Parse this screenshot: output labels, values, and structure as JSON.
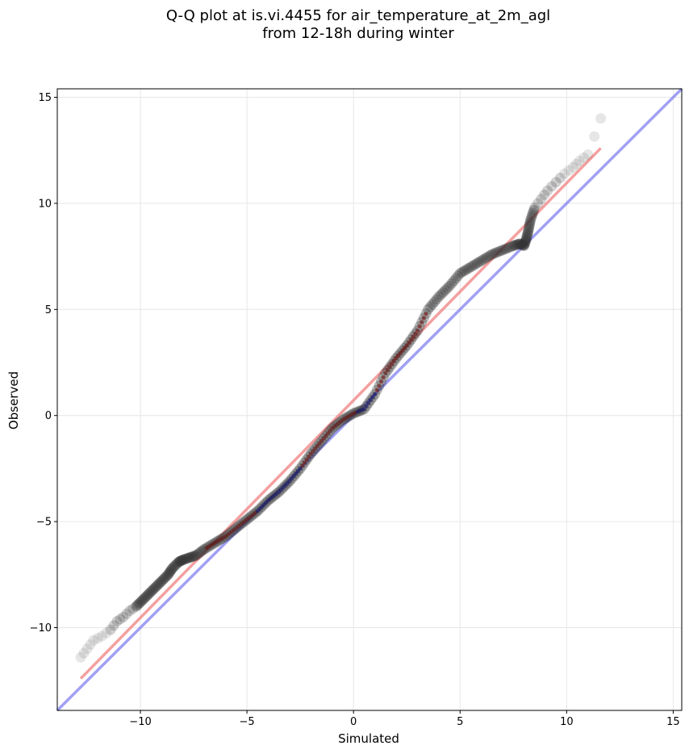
{
  "chart_data": {
    "type": "scatter",
    "title": "Q-Q plot at is.vi.4455 for air_temperature_at_2m_agl",
    "subtitle": "from 12-18h during winter",
    "xlabel": "Simulated",
    "ylabel": "Observed",
    "xlim": [
      -13.9,
      15.4
    ],
    "ylim": [
      -13.9,
      15.4
    ],
    "xticks": [
      -10,
      -5,
      0,
      5,
      10,
      15
    ],
    "yticks": [
      -10,
      -5,
      0,
      5,
      10,
      15
    ],
    "xtick_labels": [
      "−10",
      "−5",
      "0",
      "5",
      "10",
      "15"
    ],
    "ytick_labels": [
      "−10",
      "−5",
      "0",
      "5",
      "10",
      "15"
    ],
    "grid": true,
    "colors": {
      "points": "#333333",
      "fit_line": "#f08080",
      "identity_line": "#8080f0",
      "central_red": "#8b0000",
      "central_blue": "#00008b"
    },
    "identity_line": {
      "x": [
        -13.9,
        15.4
      ],
      "y": [
        -13.9,
        15.4
      ]
    },
    "fit_line": {
      "x": [
        -12.8,
        11.6
      ],
      "y": [
        -12.4,
        12.6
      ]
    },
    "quantiles": {
      "simulated": [
        -12.8,
        -12.5,
        -12.2,
        -11.8,
        -11.4,
        -11.1,
        -10.8,
        -10.5,
        -10.2,
        -9.9,
        -9.6,
        -9.3,
        -9.0,
        -8.7,
        -8.5,
        -8.2,
        -8.0,
        -7.7,
        -7.4,
        -7.0,
        -6.5,
        -6.0,
        -5.5,
        -5.0,
        -4.5,
        -4.0,
        -3.5,
        -3.0,
        -2.5,
        -2.0,
        -1.5,
        -1.0,
        -0.5,
        0.0,
        0.5,
        1.0,
        1.5,
        2.0,
        2.5,
        3.0,
        3.5,
        4.0,
        4.5,
        5.0,
        5.5,
        6.0,
        6.5,
        7.0,
        7.5,
        7.8,
        8.0,
        8.1,
        8.2,
        8.3,
        8.5,
        8.8,
        9.1,
        9.5,
        9.9,
        10.3,
        10.6,
        11.0,
        11.6
      ],
      "observed": [
        -11.4,
        -11.0,
        -10.6,
        -10.4,
        -10.1,
        -9.7,
        -9.5,
        -9.2,
        -9.0,
        -8.7,
        -8.4,
        -8.1,
        -7.8,
        -7.5,
        -7.2,
        -6.9,
        -6.8,
        -6.7,
        -6.6,
        -6.3,
        -6.0,
        -5.7,
        -5.3,
        -4.9,
        -4.5,
        -4.0,
        -3.6,
        -3.1,
        -2.5,
        -1.8,
        -1.2,
        -0.6,
        -0.2,
        0.1,
        0.3,
        1.0,
        2.0,
        2.7,
        3.3,
        4.0,
        5.0,
        5.6,
        6.1,
        6.7,
        7.0,
        7.3,
        7.6,
        7.8,
        8.0,
        8.1,
        8.0,
        8.3,
        8.7,
        9.2,
        9.8,
        10.2,
        10.6,
        11.0,
        11.4,
        11.7,
        12.0,
        12.3,
        14.0
      ]
    }
  }
}
